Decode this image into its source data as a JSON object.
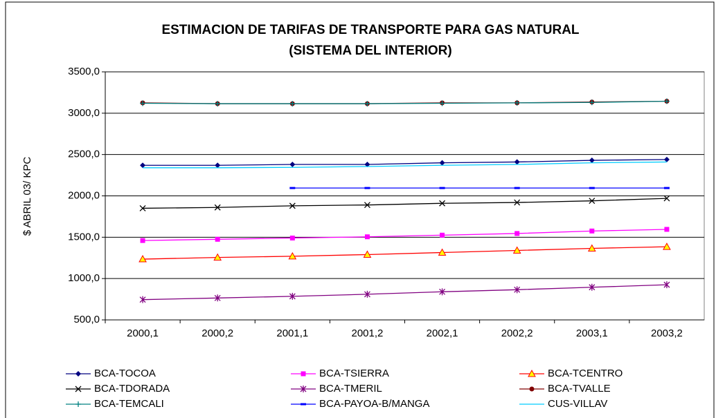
{
  "chart_data": {
    "type": "line",
    "title": [
      "ESTIMACION DE TARIFAS DE TRANSPORTE PARA GAS NATURAL",
      "(SISTEMA DEL INTERIOR)"
    ],
    "y_label": "$ ABRIL 03/ KPC",
    "categories": [
      "2000,1",
      "2000,2",
      "2001,1",
      "2001,2",
      "2002,1",
      "2002,2",
      "2003,1",
      "2003,2"
    ],
    "ylim": [
      500,
      3500
    ],
    "yticks": [
      {
        "value": 500,
        "label": "500,0"
      },
      {
        "value": 1000,
        "label": "1000,0"
      },
      {
        "value": 1500,
        "label": "1500,0"
      },
      {
        "value": 2000,
        "label": "2000,0"
      },
      {
        "value": 2500,
        "label": "2500,0"
      },
      {
        "value": 3000,
        "label": "3000,0"
      },
      {
        "value": 3500,
        "label": "3500,0"
      }
    ],
    "grid": true,
    "legend": "bottom",
    "series": [
      {
        "name": "BCA-TOCOA",
        "color": "#000080",
        "marker": "diamond",
        "values": [
          2370,
          2370,
          2380,
          2380,
          2400,
          2410,
          2430,
          2440
        ]
      },
      {
        "name": "BCA-TSIERRA",
        "color": "#FF00FF",
        "marker": "square",
        "values": [
          1460,
          1475,
          1490,
          1505,
          1525,
          1545,
          1575,
          1595
        ]
      },
      {
        "name": "BCA-TCENTRO",
        "color": "#FF0000",
        "marker": "triangle",
        "marker_fill": "#FFFF00",
        "values": [
          1235,
          1255,
          1270,
          1290,
          1315,
          1340,
          1365,
          1385
        ]
      },
      {
        "name": "BCA-TDORADA",
        "color": "#000000",
        "marker": "x",
        "values": [
          1850,
          1860,
          1880,
          1890,
          1910,
          1920,
          1940,
          1970
        ]
      },
      {
        "name": "BCA-TMERIL",
        "color": "#800080",
        "marker": "star",
        "values": [
          745,
          765,
          785,
          810,
          840,
          865,
          895,
          925
        ]
      },
      {
        "name": "BCA-TVALLE",
        "color": "#800000",
        "marker": "circle",
        "values": [
          3125,
          3115,
          3115,
          3115,
          3125,
          3125,
          3135,
          3145
        ]
      },
      {
        "name": "BCA-TEMCALI",
        "color": "#008080",
        "marker": "plus",
        "values": [
          3120,
          3115,
          3115,
          3115,
          3120,
          3125,
          3130,
          3145
        ]
      },
      {
        "name": "BCA-PAYOA-B/MANGA",
        "color": "#0000FF",
        "marker": "dash",
        "values": [
          null,
          null,
          2095,
          2095,
          2095,
          2095,
          2095,
          2095
        ]
      },
      {
        "name": "CUS-VILLAV",
        "color": "#00CCFF",
        "marker": "none",
        "values": [
          2340,
          2340,
          2345,
          2355,
          2370,
          2380,
          2400,
          2410
        ]
      }
    ]
  }
}
